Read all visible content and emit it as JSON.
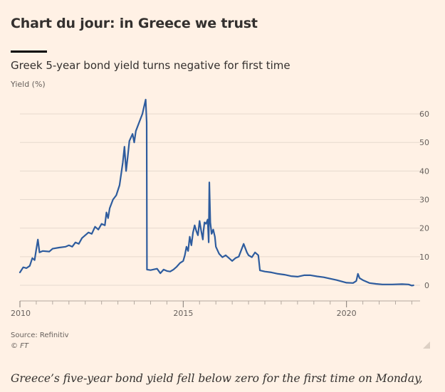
{
  "headline": "Chart du jour: in Greece we trust",
  "source": "Source: Refinitiv",
  "copyright": "© FT",
  "body_text": "Greece’s five-year bond yield fell below zero for the first time on Monday,",
  "colors": {
    "background": "#fff1e5",
    "line": "#2e5c9e",
    "grid": "#e6d9ce",
    "text": "#33302e",
    "muted": "#66605c"
  },
  "chart_data": {
    "type": "line",
    "title": "Greek 5-year bond yield turns negative for first time",
    "ylabel": "Yield (%)",
    "xlabel": "",
    "xlim": [
      2010,
      2022.1
    ],
    "ylim": [
      -2,
      65
    ],
    "y_ticks": [
      0,
      10,
      20,
      30,
      40,
      50,
      60
    ],
    "x_ticks": [
      2010,
      2015,
      2020
    ],
    "y_axis_side": "right",
    "grid": "horizontal",
    "series": [
      {
        "values": [
          [
            2010.0,
            4.5
          ],
          [
            2010.1,
            6.3
          ],
          [
            2010.2,
            6.0
          ],
          [
            2010.3,
            6.8
          ],
          [
            2010.38,
            9.5
          ],
          [
            2010.45,
            8.8
          ],
          [
            2010.5,
            12.5
          ],
          [
            2010.55,
            16.0
          ],
          [
            2010.6,
            11.5
          ],
          [
            2010.7,
            12.0
          ],
          [
            2010.9,
            11.8
          ],
          [
            2011.0,
            12.8
          ],
          [
            2011.2,
            13.2
          ],
          [
            2011.4,
            13.5
          ],
          [
            2011.5,
            14.0
          ],
          [
            2011.6,
            13.5
          ],
          [
            2011.7,
            15.0
          ],
          [
            2011.8,
            14.5
          ],
          [
            2011.9,
            16.5
          ],
          [
            2012.0,
            17.5
          ],
          [
            2012.1,
            18.5
          ],
          [
            2012.2,
            18.0
          ],
          [
            2012.3,
            20.5
          ],
          [
            2012.4,
            19.5
          ],
          [
            2012.5,
            21.5
          ],
          [
            2012.6,
            21.0
          ],
          [
            2012.65,
            25.5
          ],
          [
            2012.7,
            23.5
          ],
          [
            2012.75,
            27.0
          ],
          [
            2012.85,
            30.0
          ],
          [
            2012.95,
            31.5
          ],
          [
            2013.05,
            35.0
          ],
          [
            2013.15,
            43.0
          ],
          [
            2013.2,
            48.5
          ],
          [
            2013.25,
            40.0
          ],
          [
            2013.3,
            45.0
          ],
          [
            2013.35,
            50.5
          ],
          [
            2013.45,
            53.0
          ],
          [
            2013.5,
            50.0
          ],
          [
            2013.55,
            54.0
          ],
          [
            2013.65,
            57.0
          ],
          [
            2013.75,
            60.0
          ],
          [
            2013.8,
            62.5
          ],
          [
            2013.85,
            65.0
          ],
          [
            2013.88,
            57.0
          ],
          [
            2013.89,
            5.5
          ],
          [
            2014.0,
            5.3
          ],
          [
            2014.2,
            5.8
          ],
          [
            2014.3,
            4.2
          ],
          [
            2014.4,
            5.5
          ],
          [
            2014.5,
            5.0
          ],
          [
            2014.6,
            4.8
          ],
          [
            2014.7,
            5.5
          ],
          [
            2014.8,
            6.5
          ],
          [
            2014.9,
            7.8
          ],
          [
            2015.0,
            8.5
          ],
          [
            2015.05,
            10.5
          ],
          [
            2015.1,
            13.5
          ],
          [
            2015.15,
            12.0
          ],
          [
            2015.2,
            17.0
          ],
          [
            2015.25,
            14.0
          ],
          [
            2015.3,
            18.5
          ],
          [
            2015.35,
            21.0
          ],
          [
            2015.4,
            19.0
          ],
          [
            2015.45,
            17.5
          ],
          [
            2015.5,
            22.5
          ],
          [
            2015.55,
            19.0
          ],
          [
            2015.6,
            16.0
          ],
          [
            2015.62,
            19.0
          ],
          [
            2015.65,
            22.0
          ],
          [
            2015.7,
            21.5
          ],
          [
            2015.75,
            23.0
          ],
          [
            2015.78,
            15.0
          ],
          [
            2015.8,
            36.0
          ],
          [
            2015.83,
            22.0
          ],
          [
            2015.87,
            18.0
          ],
          [
            2015.92,
            19.5
          ],
          [
            2015.97,
            17.0
          ],
          [
            2016.0,
            13.5
          ],
          [
            2016.1,
            11.0
          ],
          [
            2016.2,
            9.8
          ],
          [
            2016.3,
            10.5
          ],
          [
            2016.4,
            9.5
          ],
          [
            2016.5,
            8.5
          ],
          [
            2016.6,
            9.5
          ],
          [
            2016.7,
            10.0
          ],
          [
            2016.8,
            13.0
          ],
          [
            2016.85,
            14.5
          ],
          [
            2016.9,
            13.0
          ],
          [
            2016.95,
            11.5
          ],
          [
            2017.0,
            10.5
          ],
          [
            2017.1,
            9.8
          ],
          [
            2017.2,
            11.5
          ],
          [
            2017.3,
            10.5
          ],
          [
            2017.35,
            5.2
          ],
          [
            2017.5,
            4.8
          ],
          [
            2017.7,
            4.5
          ],
          [
            2017.9,
            4.0
          ],
          [
            2018.1,
            3.7
          ],
          [
            2018.3,
            3.2
          ],
          [
            2018.5,
            3.0
          ],
          [
            2018.7,
            3.5
          ],
          [
            2018.9,
            3.5
          ],
          [
            2019.1,
            3.1
          ],
          [
            2019.3,
            2.8
          ],
          [
            2019.5,
            2.3
          ],
          [
            2019.7,
            1.8
          ],
          [
            2019.9,
            1.2
          ],
          [
            2020.0,
            0.9
          ],
          [
            2020.2,
            0.8
          ],
          [
            2020.3,
            1.5
          ],
          [
            2020.35,
            4.0
          ],
          [
            2020.4,
            2.5
          ],
          [
            2020.5,
            1.8
          ],
          [
            2020.7,
            0.8
          ],
          [
            2020.9,
            0.5
          ],
          [
            2021.1,
            0.3
          ],
          [
            2021.4,
            0.3
          ],
          [
            2021.7,
            0.4
          ],
          [
            2021.9,
            0.3
          ],
          [
            2022.0,
            -0.1
          ],
          [
            2022.05,
            0.0
          ]
        ]
      }
    ]
  }
}
